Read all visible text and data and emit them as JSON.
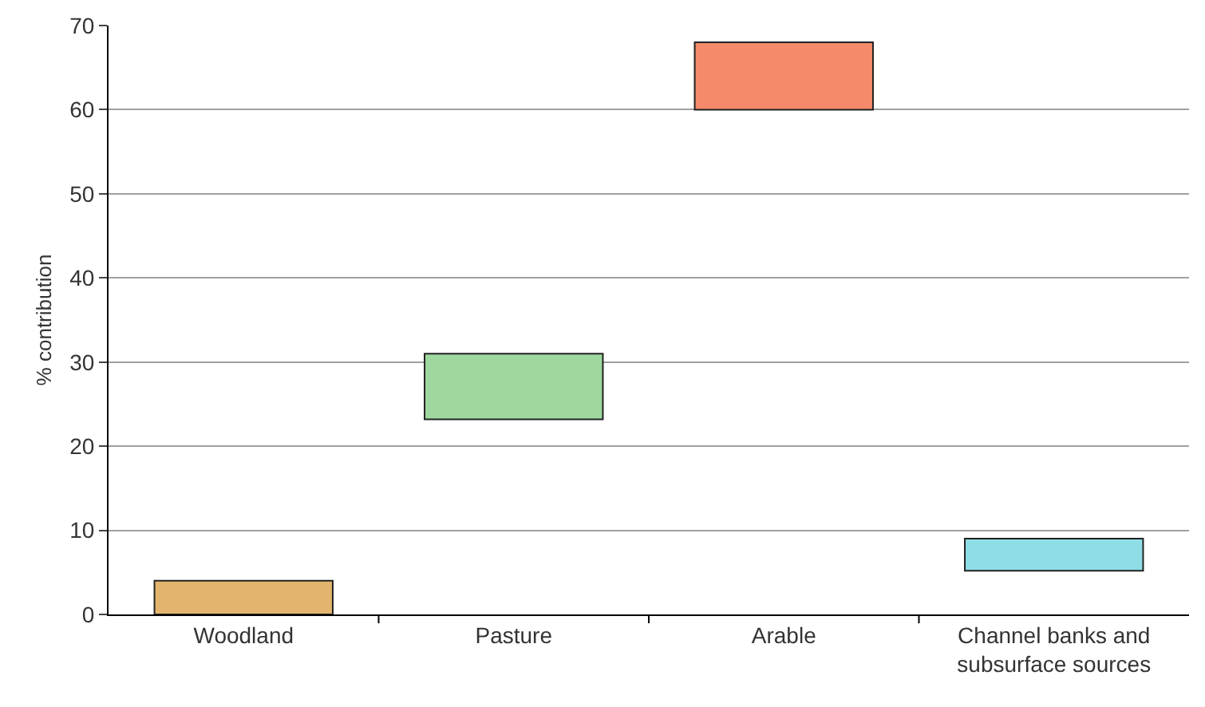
{
  "chart_data": {
    "type": "bar",
    "ylabel": "% contribution",
    "categories": [
      "Woodland",
      "Pasture",
      "Arable",
      "Channel banks and subsurface sources"
    ],
    "base": [
      0,
      23.2,
      60,
      5.2
    ],
    "values": [
      4,
      7.8,
      8,
      3.8
    ],
    "colors": [
      "#e2b46e",
      "#9fd89f",
      "#f58a6a",
      "#8fdde6"
    ],
    "ylim": [
      0,
      70
    ],
    "yticks": [
      0,
      10,
      20,
      30,
      40,
      50,
      60,
      70
    ],
    "grid": "y"
  }
}
